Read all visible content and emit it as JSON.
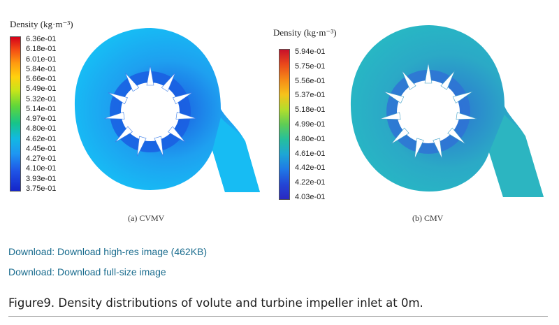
{
  "figure": {
    "panels": [
      {
        "id": "a",
        "subcaption": "(a) CVMV",
        "legend_title": "Density (kg·m⁻³)",
        "ticks": [
          "6.36e-01",
          "6.18e-01",
          "6.01e-01",
          "5.84e-01",
          "5.66e-01",
          "5.49e-01",
          "5.32e-01",
          "5.14e-01",
          "4.97e-01",
          "4.80e-01",
          "4.62e-01",
          "4.45e-01",
          "4.27e-01",
          "4.10e-01",
          "3.93e-01",
          "3.75e-01"
        ],
        "colors": {
          "volute": "#1ea6f2",
          "volute_edge": "#12b9f4",
          "inner_ring": "#1b60e0",
          "outlet": "#16bcf2"
        }
      },
      {
        "id": "b",
        "subcaption": "(b) CMV",
        "legend_title": "Density (kg·m⁻³)",
        "ticks": [
          "5.94e-01",
          "5.75e-01",
          "5.56e-01",
          "5.37e-01",
          "5.18e-01",
          "4.99e-01",
          "4.80e-01",
          "4.61e-01",
          "4.42e-01",
          "4.22e-01",
          "4.03e-01"
        ],
        "colors": {
          "volute": "#2cabc6",
          "volute_edge": "#27b5c6",
          "inner_ring": "#2f6fd8",
          "outlet": "#2db4c2"
        }
      }
    ]
  },
  "links": {
    "high_res": "Download: Download high-res image (462KB)",
    "full_size": "Download: Download full-size image"
  },
  "caption": "Figure9. Density distributions of volute and turbine impeller inlet at 0m.",
  "colors": {
    "link": "#1a6c8e",
    "text": "#1c1c1c"
  }
}
